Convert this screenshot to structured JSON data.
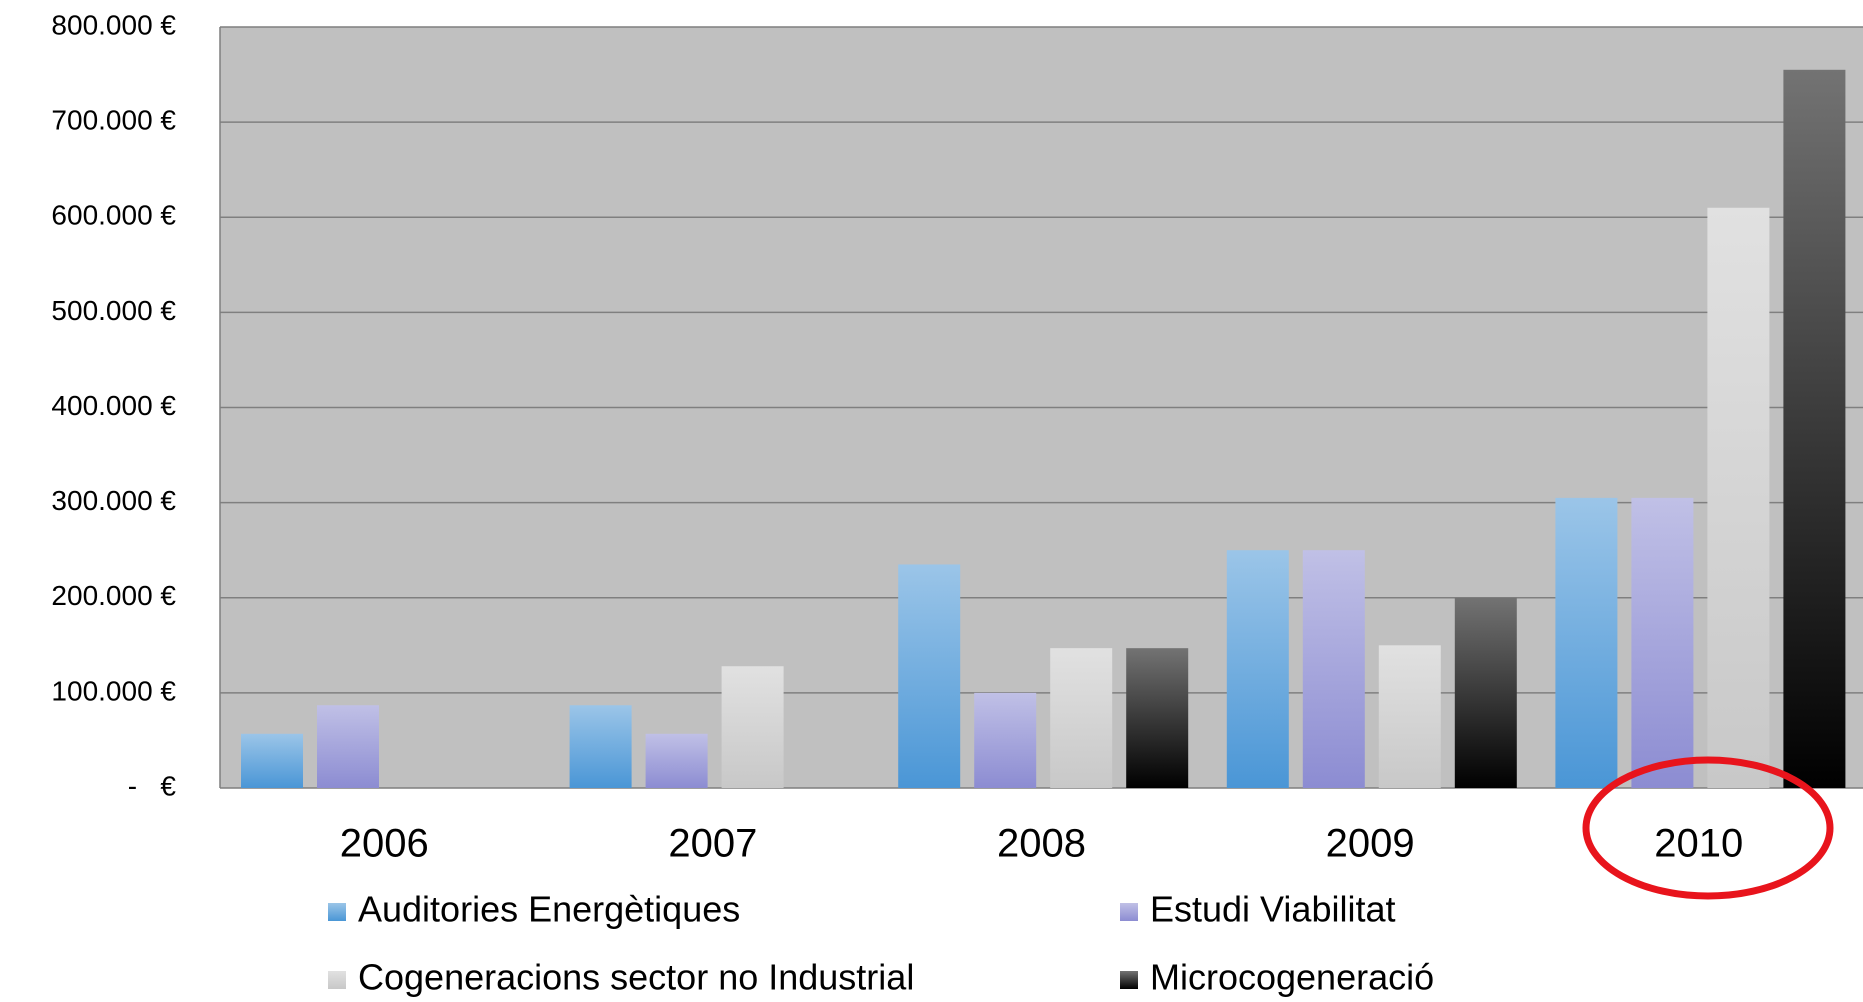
{
  "chart_data": {
    "type": "bar",
    "categories": [
      "2006",
      "2007",
      "2008",
      "2009",
      "2010"
    ],
    "series": [
      {
        "name": "Auditories Energètiques",
        "color": "#4a96d6",
        "values": [
          57000,
          87000,
          235000,
          250000,
          305000
        ]
      },
      {
        "name": "Estudi Viabilitat",
        "color": "#8c8cd2",
        "values": [
          87000,
          57000,
          100000,
          250000,
          305000
        ]
      },
      {
        "name": "Cogeneracions sector no Industrial",
        "color": "#c8c8c8",
        "values": [
          null,
          128000,
          147000,
          150000,
          610000
        ]
      },
      {
        "name": "Microcogeneració",
        "color": "#000000",
        "values": [
          null,
          null,
          147000,
          200000,
          755000
        ]
      }
    ],
    "ylim": [
      0,
      800000
    ],
    "yticks": [
      {
        "value": 0,
        "label": "-   €"
      },
      {
        "value": 100000,
        "label": "100.000 €"
      },
      {
        "value": 200000,
        "label": "200.000 €"
      },
      {
        "value": 300000,
        "label": "300.000 €"
      },
      {
        "value": 400000,
        "label": "400.000 €"
      },
      {
        "value": 500000,
        "label": "500.000 €"
      },
      {
        "value": 600000,
        "label": "600.000 €"
      },
      {
        "value": 700000,
        "label": "700.000 €"
      },
      {
        "value": 800000,
        "label": "800.000 €"
      }
    ],
    "grid": true,
    "legend": "bottom"
  }
}
